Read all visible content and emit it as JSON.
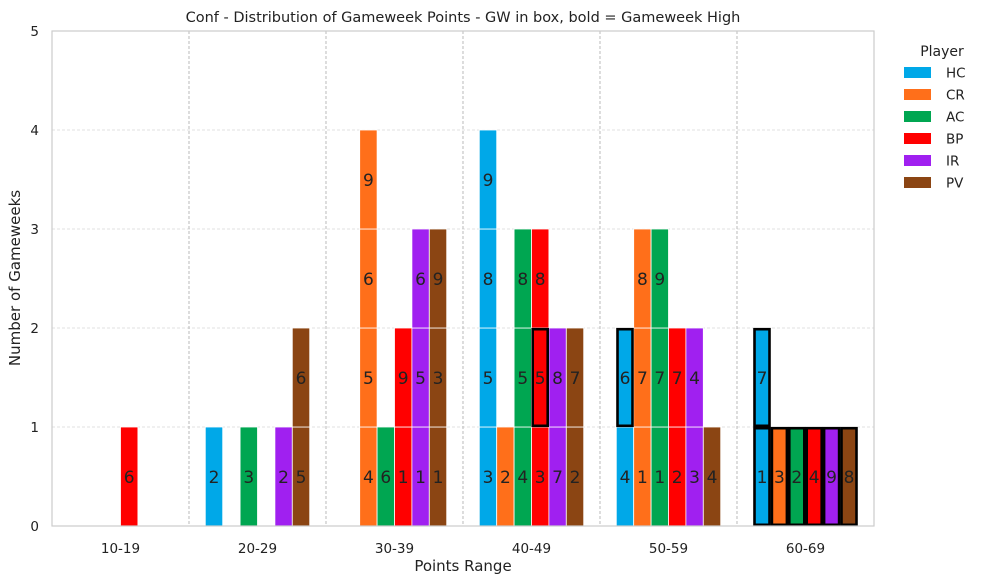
{
  "chart_data": {
    "type": "bar",
    "title": "Conf - Distribution of Gameweek Points - GW in box, bold = Gameweek High",
    "xlabel": "Points Range",
    "ylabel": "Number of Gameweeks",
    "categories": [
      "10-19",
      "20-29",
      "30-39",
      "40-49",
      "50-59",
      "60-69"
    ],
    "ylim": [
      0,
      5
    ],
    "yticks": [
      "0",
      "1",
      "2",
      "3",
      "4",
      "5"
    ],
    "grid": true,
    "legend": {
      "title": "Player",
      "position": "right"
    },
    "series": [
      {
        "name": "HC",
        "color": "#00a8e8",
        "values": [
          0,
          1,
          0,
          4,
          2,
          2
        ],
        "labels": [
          [],
          [
            "2"
          ],
          [],
          [
            "3",
            "5",
            "8",
            "9"
          ],
          [
            "4",
            "6"
          ],
          [
            "1",
            "7"
          ]
        ]
      },
      {
        "name": "CR",
        "color": "#ff6f1a",
        "values": [
          0,
          0,
          4,
          1,
          3,
          1
        ],
        "labels": [
          [],
          [],
          [
            "4",
            "5",
            "6",
            "9"
          ],
          [
            "2"
          ],
          [
            "1",
            "7",
            "8"
          ],
          [
            "3"
          ]
        ]
      },
      {
        "name": "AC",
        "color": "#00a651",
        "values": [
          0,
          1,
          1,
          3,
          3,
          1
        ],
        "labels": [
          [],
          [
            "3"
          ],
          [
            "6"
          ],
          [
            "4",
            "5",
            "8"
          ],
          [
            "1",
            "7",
            "9"
          ],
          [
            "2"
          ]
        ]
      },
      {
        "name": "BP",
        "color": "#ff0000",
        "values": [
          1,
          0,
          2,
          3,
          2,
          1
        ],
        "labels": [
          [
            "6"
          ],
          [],
          [
            "1",
            "9"
          ],
          [
            "3",
            "5",
            "8"
          ],
          [
            "2",
            "7"
          ],
          [
            "4"
          ]
        ]
      },
      {
        "name": "IR",
        "color": "#a020f0",
        "values": [
          0,
          1,
          3,
          2,
          2,
          1
        ],
        "labels": [
          [],
          [
            "2"
          ],
          [
            "1",
            "5",
            "6"
          ],
          [
            "7",
            "8"
          ],
          [
            "3",
            "4"
          ],
          [
            "9"
          ]
        ]
      },
      {
        "name": "PV",
        "color": "#8b4513",
        "values": [
          0,
          2,
          3,
          2,
          1,
          1
        ],
        "labels": [
          [],
          [
            "5",
            "6"
          ],
          [
            "1",
            "3",
            "9"
          ],
          [
            "2",
            "7"
          ],
          [
            "4"
          ],
          [
            "8"
          ]
        ]
      }
    ],
    "boxed_segments": [
      {
        "series": "BP",
        "category": "40-49",
        "index": 1
      },
      {
        "series": "HC",
        "category": "50-59",
        "index": 1
      },
      {
        "series": "HC",
        "category": "60-69",
        "index": 0
      },
      {
        "series": "HC",
        "category": "60-69",
        "index": 1
      },
      {
        "series": "CR",
        "category": "60-69",
        "index": 0
      },
      {
        "series": "AC",
        "category": "60-69",
        "index": 0
      },
      {
        "series": "BP",
        "category": "60-69",
        "index": 0
      },
      {
        "series": "IR",
        "category": "60-69",
        "index": 0
      },
      {
        "series": "PV",
        "category": "60-69",
        "index": 0
      }
    ]
  }
}
